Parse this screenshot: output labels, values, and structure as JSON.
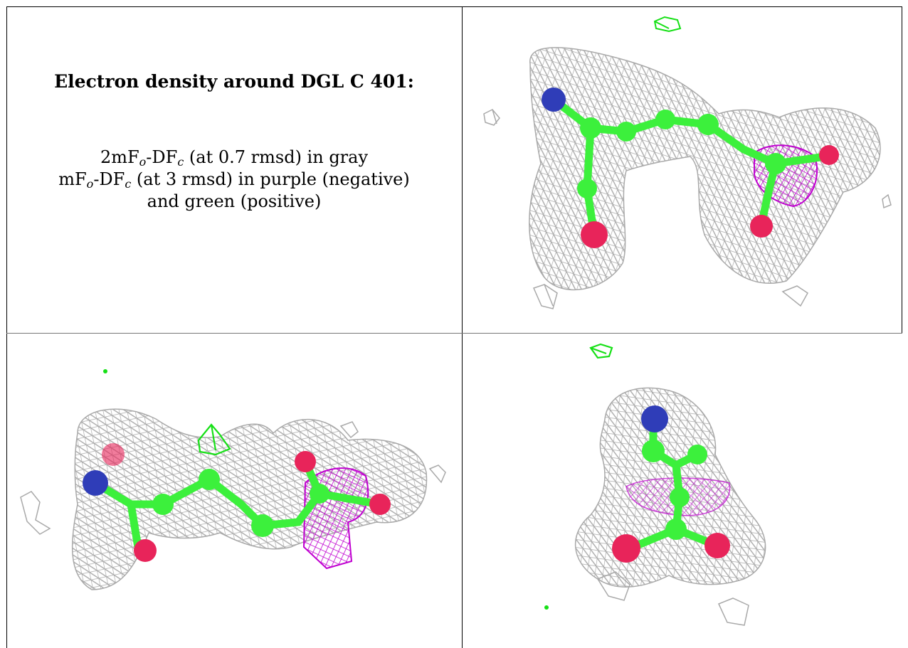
{
  "caption": {
    "title": "Electron density around DGL C 401:",
    "line1": {
      "a": "2mF",
      "o": "o",
      "b": "-DF",
      "c": "c",
      "rest": " (at 0.7 rmsd) in gray"
    },
    "line2": {
      "a": "mF",
      "o": "o",
      "b": "-DF",
      "c": "c",
      "rest": " (at 3 rmsd) in purple (negative)"
    },
    "line3": "and green (positive)"
  },
  "colors": {
    "mesh_2fofc": "#a9a9a9",
    "mesh_negative": "#c000d0",
    "mesh_positive": "#16e016",
    "carbon": "#3cf03c",
    "nitrogen": "#2f3db8",
    "oxygen": "#e8245a"
  },
  "panels": [
    {
      "id": "view-1",
      "description_icon": "density-view-1-icon"
    },
    {
      "id": "view-2",
      "description_icon": "density-view-2-icon"
    },
    {
      "id": "view-3",
      "description_icon": "density-view-3-icon"
    }
  ]
}
